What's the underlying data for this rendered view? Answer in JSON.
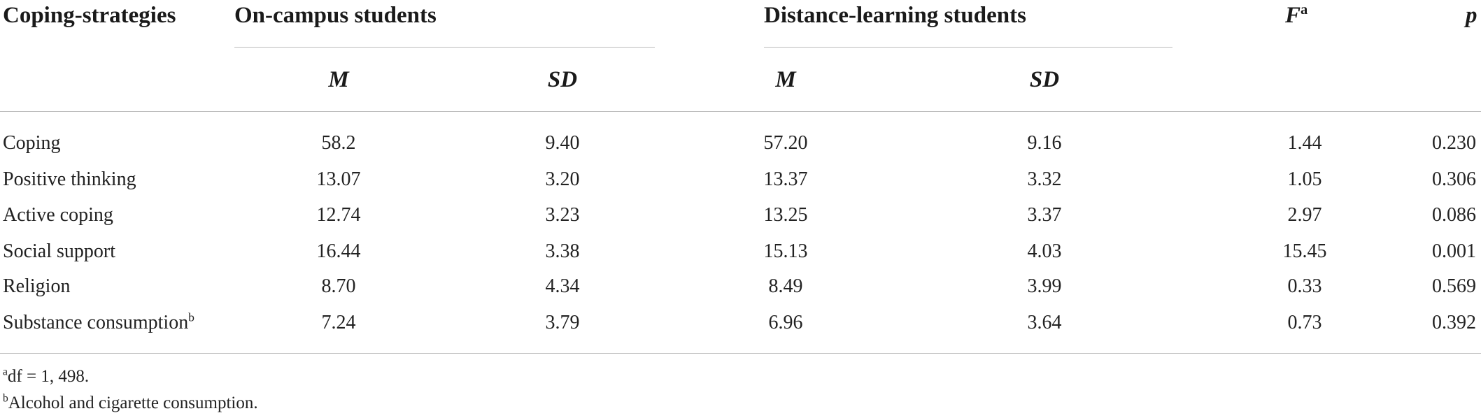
{
  "table": {
    "headers": {
      "coping": "Coping-strategies",
      "on_campus": "On-campus students",
      "distance": "Distance-learning students",
      "f": "F",
      "f_sup": "a",
      "p": "p"
    },
    "subheaders": {
      "m1": "M",
      "sd1": "SD",
      "m2": "M",
      "sd2": "SD"
    },
    "rows": [
      {
        "label": "Coping",
        "label_sup": "",
        "m1": "58.2",
        "sd1": "9.40",
        "m2": "57.20",
        "sd2": "9.16",
        "f": "1.44",
        "p": "0.230"
      },
      {
        "label": "Positive thinking",
        "label_sup": "",
        "m1": "13.07",
        "sd1": "3.20",
        "m2": "13.37",
        "sd2": "3.32",
        "f": "1.05",
        "p": "0.306"
      },
      {
        "label": "Active coping",
        "label_sup": "",
        "m1": "12.74",
        "sd1": "3.23",
        "m2": "13.25",
        "sd2": "3.37",
        "f": "2.97",
        "p": "0.086"
      },
      {
        "label": "Social support",
        "label_sup": "",
        "m1": "16.44",
        "sd1": "3.38",
        "m2": "15.13",
        "sd2": "4.03",
        "f": "15.45",
        "p": "0.001"
      },
      {
        "label": "Religion",
        "label_sup": "",
        "m1": "8.70",
        "sd1": "4.34",
        "m2": "8.49",
        "sd2": "3.99",
        "f": "0.33",
        "p": "0.569"
      },
      {
        "label": "Substance consumption",
        "label_sup": "b",
        "m1": "7.24",
        "sd1": "3.79",
        "m2": "6.96",
        "sd2": "3.64",
        "f": "0.73",
        "p": "0.392"
      }
    ]
  },
  "footnotes": [
    {
      "mark": "a",
      "text": "df = 1, 498."
    },
    {
      "mark": "b",
      "text": "Alcohol and cigarette consumption."
    }
  ]
}
